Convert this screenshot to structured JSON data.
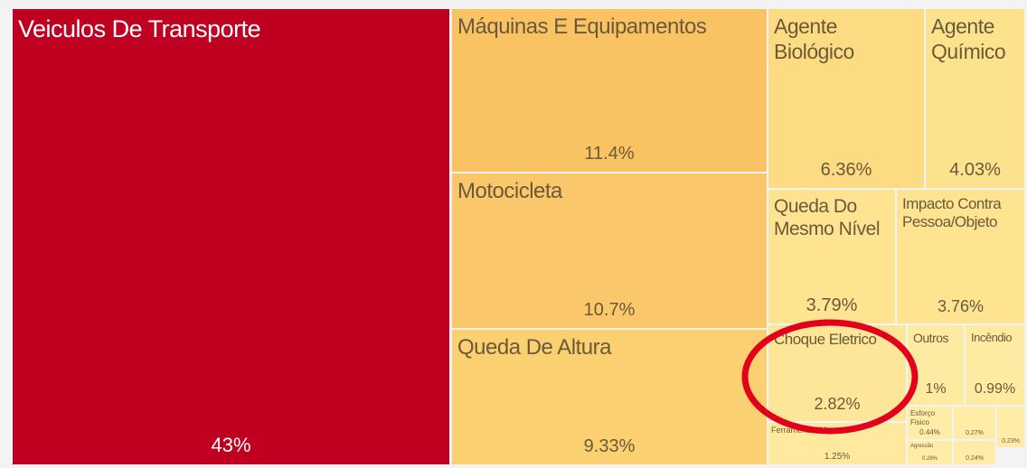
{
  "chart_data": {
    "type": "treemap",
    "items": [
      {
        "name": "Veiculos De Transporte",
        "value": 43,
        "label": "43%",
        "color": "#c00021"
      },
      {
        "name": "Máquinas E Equipamentos",
        "value": 11.4,
        "label": "11.4%",
        "color": "#f9c262"
      },
      {
        "name": "Motocicleta",
        "value": 10.7,
        "label": "10.7%",
        "color": "#fac86a"
      },
      {
        "name": "Queda De Altura",
        "value": 9.33,
        "label": "9.33%",
        "color": "#fbd070"
      },
      {
        "name": "Agente Biológico",
        "value": 6.36,
        "label": "6.36%",
        "color": "#fddb82"
      },
      {
        "name": "Agente Químico",
        "value": 4.03,
        "label": "4.03%",
        "color": "#fde28d"
      },
      {
        "name": "Queda Do Mesmo Nível",
        "value": 3.79,
        "label": "3.79%",
        "color": "#fee391"
      },
      {
        "name": "Impacto Contra Pessoa/Objeto",
        "value": 3.76,
        "label": "3.76%",
        "color": "#fee391"
      },
      {
        "name": "Choque Eletrico",
        "value": 2.82,
        "label": "2.82%",
        "color": "#fee698"
      },
      {
        "name": "Outros",
        "value": 1,
        "label": "1%",
        "color": "#feeba2"
      },
      {
        "name": "Incêndio",
        "value": 0.99,
        "label": "0.99%",
        "color": "#feeba2"
      },
      {
        "name": "Ferramentas Manuais",
        "value": 1.25,
        "label": "1.25%",
        "color": "#fee99f"
      },
      {
        "name": "Esforço Fisico",
        "value": 0.44,
        "label": "0.44%",
        "color": "#feeca7"
      },
      {
        "value": 0.27,
        "label": "0.27%",
        "color": "#feeca7"
      },
      {
        "value": 0.23,
        "label": "0.23%",
        "color": "#feeca7"
      },
      {
        "name": "Agressão",
        "value": 0.28,
        "label": "0.28%",
        "color": "#feeca7"
      },
      {
        "value": 0.24,
        "label": "0.24%",
        "color": "#feeca7"
      }
    ]
  }
}
